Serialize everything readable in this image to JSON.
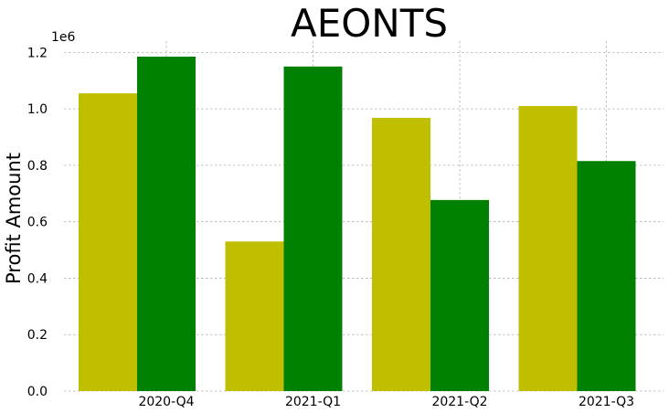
{
  "chart_data": {
    "type": "bar",
    "title": "AEONTS",
    "xlabel": "",
    "ylabel": "Profit Amount",
    "y_offset_label": "1e6",
    "categories": [
      "2020-Q4",
      "2021-Q1",
      "2021-Q2",
      "2021-Q3"
    ],
    "series": [
      {
        "values": [
          1055000,
          530000,
          968000,
          1010000
        ],
        "color": "#bfbf00"
      },
      {
        "values": [
          1185000,
          1150000,
          677000,
          815000
        ],
        "color": "#008000"
      }
    ],
    "ylim": [
      0,
      1240000
    ],
    "y_ticks": [
      0,
      200000,
      400000,
      600000,
      800000,
      1000000,
      1200000
    ],
    "y_tick_labels": [
      "0.0",
      "0.2",
      "0.4",
      "0.6",
      "0.8",
      "1.0",
      "1.2"
    ],
    "grid": true,
    "legend": "none"
  }
}
